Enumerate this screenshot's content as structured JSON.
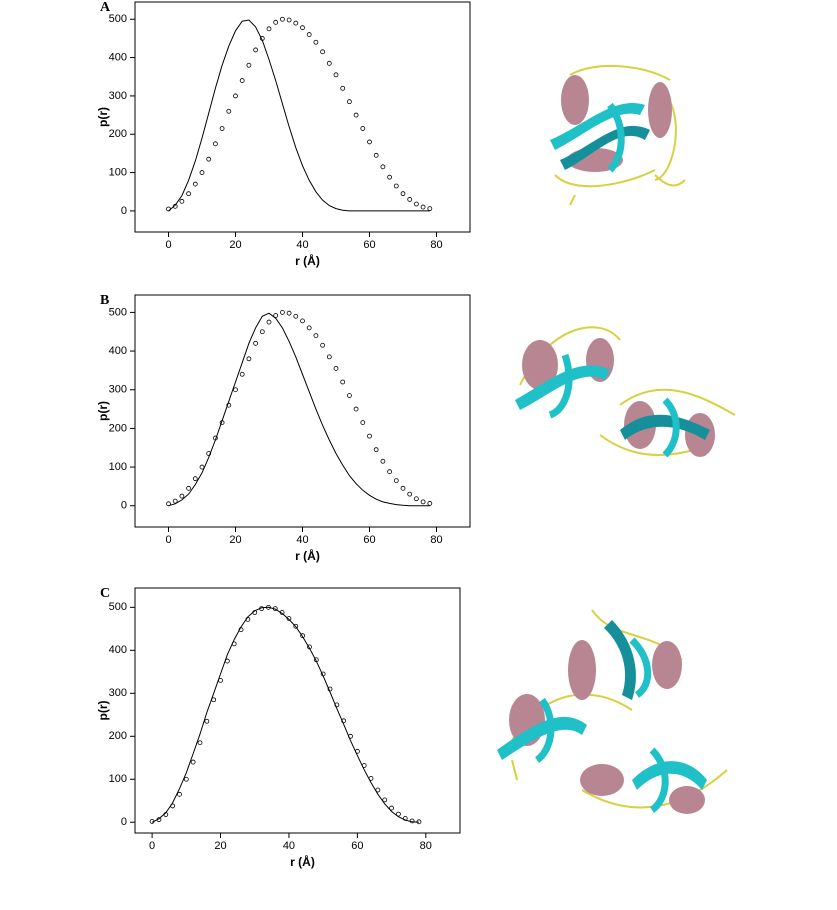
{
  "chart_data": [
    {
      "type": "line",
      "panel": "A",
      "xlabel": "r (Å)",
      "ylabel": "p(r)",
      "xlim": [
        -10,
        90
      ],
      "ylim": [
        -55,
        545
      ],
      "xticks": [
        0,
        20,
        40,
        60,
        80
      ],
      "yticks": [
        0,
        100,
        200,
        300,
        400,
        500
      ],
      "x": [
        0,
        2,
        4,
        6,
        8,
        10,
        12,
        14,
        16,
        18,
        20,
        22,
        24,
        26,
        28,
        30,
        32,
        34,
        36,
        38,
        40,
        42,
        44,
        46,
        48,
        50,
        52,
        54,
        56,
        58,
        60,
        62,
        64,
        66,
        68,
        70,
        72,
        74,
        76,
        78
      ],
      "series": [
        {
          "mode": "markers",
          "color": "#000000",
          "values": [
            5,
            12,
            25,
            45,
            70,
            100,
            135,
            175,
            215,
            260,
            300,
            340,
            380,
            420,
            450,
            475,
            492,
            500,
            498,
            490,
            478,
            460,
            440,
            415,
            385,
            355,
            320,
            285,
            250,
            215,
            180,
            145,
            115,
            88,
            65,
            45,
            30,
            18,
            10,
            6
          ]
        },
        {
          "mode": "lines",
          "color": "#000000",
          "values": [
            0,
            15,
            40,
            80,
            130,
            190,
            255,
            320,
            380,
            430,
            470,
            495,
            498,
            480,
            445,
            395,
            340,
            280,
            220,
            165,
            118,
            80,
            50,
            28,
            14,
            6,
            2,
            0,
            0,
            0,
            0,
            0,
            0,
            0,
            0,
            0,
            0,
            0,
            0,
            0
          ]
        }
      ]
    },
    {
      "type": "line",
      "panel": "B",
      "xlabel": "r (Å)",
      "ylabel": "p(r)",
      "xlim": [
        -10,
        90
      ],
      "ylim": [
        -55,
        545
      ],
      "xticks": [
        0,
        20,
        40,
        60,
        80
      ],
      "yticks": [
        0,
        100,
        200,
        300,
        400,
        500
      ],
      "x": [
        0,
        2,
        4,
        6,
        8,
        10,
        12,
        14,
        16,
        18,
        20,
        22,
        24,
        26,
        28,
        30,
        32,
        34,
        36,
        38,
        40,
        42,
        44,
        46,
        48,
        50,
        52,
        54,
        56,
        58,
        60,
        62,
        64,
        66,
        68,
        70,
        72,
        74,
        76,
        78
      ],
      "series": [
        {
          "mode": "markers",
          "color": "#000000",
          "values": [
            5,
            12,
            25,
            45,
            70,
            100,
            135,
            175,
            215,
            260,
            300,
            340,
            380,
            420,
            450,
            475,
            492,
            500,
            498,
            490,
            478,
            460,
            440,
            415,
            385,
            355,
            320,
            285,
            250,
            215,
            180,
            145,
            115,
            88,
            65,
            45,
            30,
            18,
            10,
            6
          ]
        },
        {
          "mode": "lines",
          "color": "#000000",
          "values": [
            0,
            5,
            15,
            30,
            55,
            85,
            125,
            170,
            220,
            270,
            320,
            370,
            420,
            460,
            490,
            498,
            485,
            460,
            425,
            385,
            340,
            295,
            250,
            208,
            170,
            135,
            105,
            78,
            57,
            40,
            27,
            17,
            10,
            6,
            3,
            1,
            0,
            0,
            0,
            0
          ]
        }
      ]
    },
    {
      "type": "line",
      "panel": "C",
      "xlabel": "r (Å)",
      "ylabel": "p(r)",
      "xlim": [
        -5,
        90
      ],
      "ylim": [
        -25,
        545
      ],
      "xticks": [
        0,
        20,
        40,
        60,
        80
      ],
      "yticks": [
        0,
        100,
        200,
        300,
        400,
        500
      ],
      "x": [
        0,
        2,
        4,
        6,
        8,
        10,
        12,
        14,
        16,
        18,
        20,
        22,
        24,
        26,
        28,
        30,
        32,
        34,
        36,
        38,
        40,
        42,
        44,
        46,
        48,
        50,
        52,
        54,
        56,
        58,
        60,
        62,
        64,
        66,
        68,
        70,
        72,
        74,
        76,
        78
      ],
      "series": [
        {
          "mode": "markers",
          "color": "#000000",
          "values": [
            2,
            6,
            18,
            38,
            65,
            100,
            140,
            185,
            235,
            285,
            330,
            375,
            415,
            448,
            472,
            488,
            497,
            500,
            497,
            488,
            474,
            456,
            434,
            408,
            378,
            345,
            310,
            273,
            236,
            200,
            165,
            132,
            102,
            75,
            52,
            33,
            19,
            9,
            3,
            1
          ]
        },
        {
          "mode": "lines",
          "color": "#000000",
          "values": [
            0,
            8,
            22,
            45,
            78,
            115,
            160,
            205,
            255,
            300,
            345,
            390,
            425,
            455,
            478,
            492,
            499,
            500,
            496,
            486,
            472,
            455,
            432,
            405,
            375,
            340,
            303,
            265,
            228,
            190,
            155,
            122,
            92,
            65,
            43,
            25,
            13,
            5,
            1,
            0
          ]
        }
      ]
    }
  ]
}
